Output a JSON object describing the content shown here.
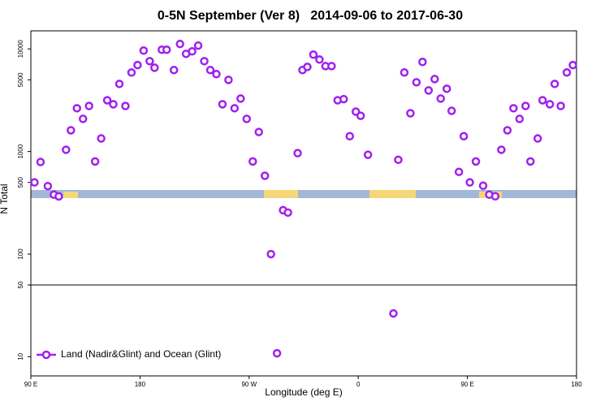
{
  "chart_data": {
    "type": "scatter",
    "title": "0-5N September (Ver 8)   2014-09-06 to 2017-06-30",
    "x_label": "Longitude (deg E)",
    "y_label": "N Total",
    "log_y": true,
    "legend_position": "bottom-left",
    "xlim": [
      90,
      540
    ],
    "xticks": [
      {
        "value": 90,
        "label": "90 E"
      },
      180,
      {
        "value": 270,
        "label": "90 W"
      },
      {
        "value": 360,
        "label": "0"
      },
      {
        "value": 450,
        "label": "90 E"
      },
      {
        "value": 540,
        "label": "180"
      }
    ],
    "ylim": [
      6.5,
      15000
    ],
    "yticks": [
      10,
      50,
      100,
      500,
      1000,
      5000,
      10000
    ],
    "reference_line": 50,
    "series": [
      {
        "name": "Land (Nadir&Glint) and Ocean (Glint)",
        "color": "#a020f0",
        "x": [
          93,
          98,
          104,
          109,
          113,
          119,
          123,
          128,
          133,
          138,
          143,
          148,
          153,
          158,
          163,
          168,
          173,
          178,
          183,
          188,
          192,
          198,
          202,
          208,
          213,
          218,
          223,
          228,
          233,
          238,
          243,
          248,
          253,
          258,
          263,
          268,
          273,
          278,
          283,
          288,
          293,
          298,
          302,
          310,
          314,
          318,
          323,
          328,
          333,
          338,
          343,
          348,
          353,
          358,
          362,
          368,
          389,
          393,
          398,
          403,
          408,
          413,
          418,
          423,
          428,
          433,
          437,
          443,
          447,
          452,
          457,
          463,
          468,
          473,
          478,
          483,
          488,
          493,
          498,
          502,
          508,
          512,
          518,
          522,
          527,
          532,
          537
        ],
        "values": [
          500,
          790,
          460,
          380,
          365,
          1040,
          1610,
          2640,
          2080,
          2780,
          800,
          1340,
          3160,
          2890,
          4560,
          2780,
          5890,
          6960,
          9640,
          7600,
          6560,
          9820,
          9820,
          6220,
          11170,
          8950,
          9460,
          10770,
          7600,
          6220,
          5680,
          2890,
          4990,
          2640,
          3280,
          2080,
          800,
          1550,
          580,
          100,
          10.8,
          268,
          254,
          964,
          6220,
          6680,
          8800,
          7880,
          6800,
          6800,
          3160,
          3240,
          1410,
          2450,
          2230,
          930,
          26.4,
          830,
          5890,
          2360,
          4730,
          7470,
          3940,
          5080,
          3280,
          4090,
          2490,
          633,
          1410,
          500,
          800,
          464,
          380,
          366,
          1040,
          1610,
          2640,
          2080,
          2780,
          800,
          1340,
          3160,
          2890,
          4560,
          2780,
          5890,
          6960
        ]
      }
    ]
  }
}
